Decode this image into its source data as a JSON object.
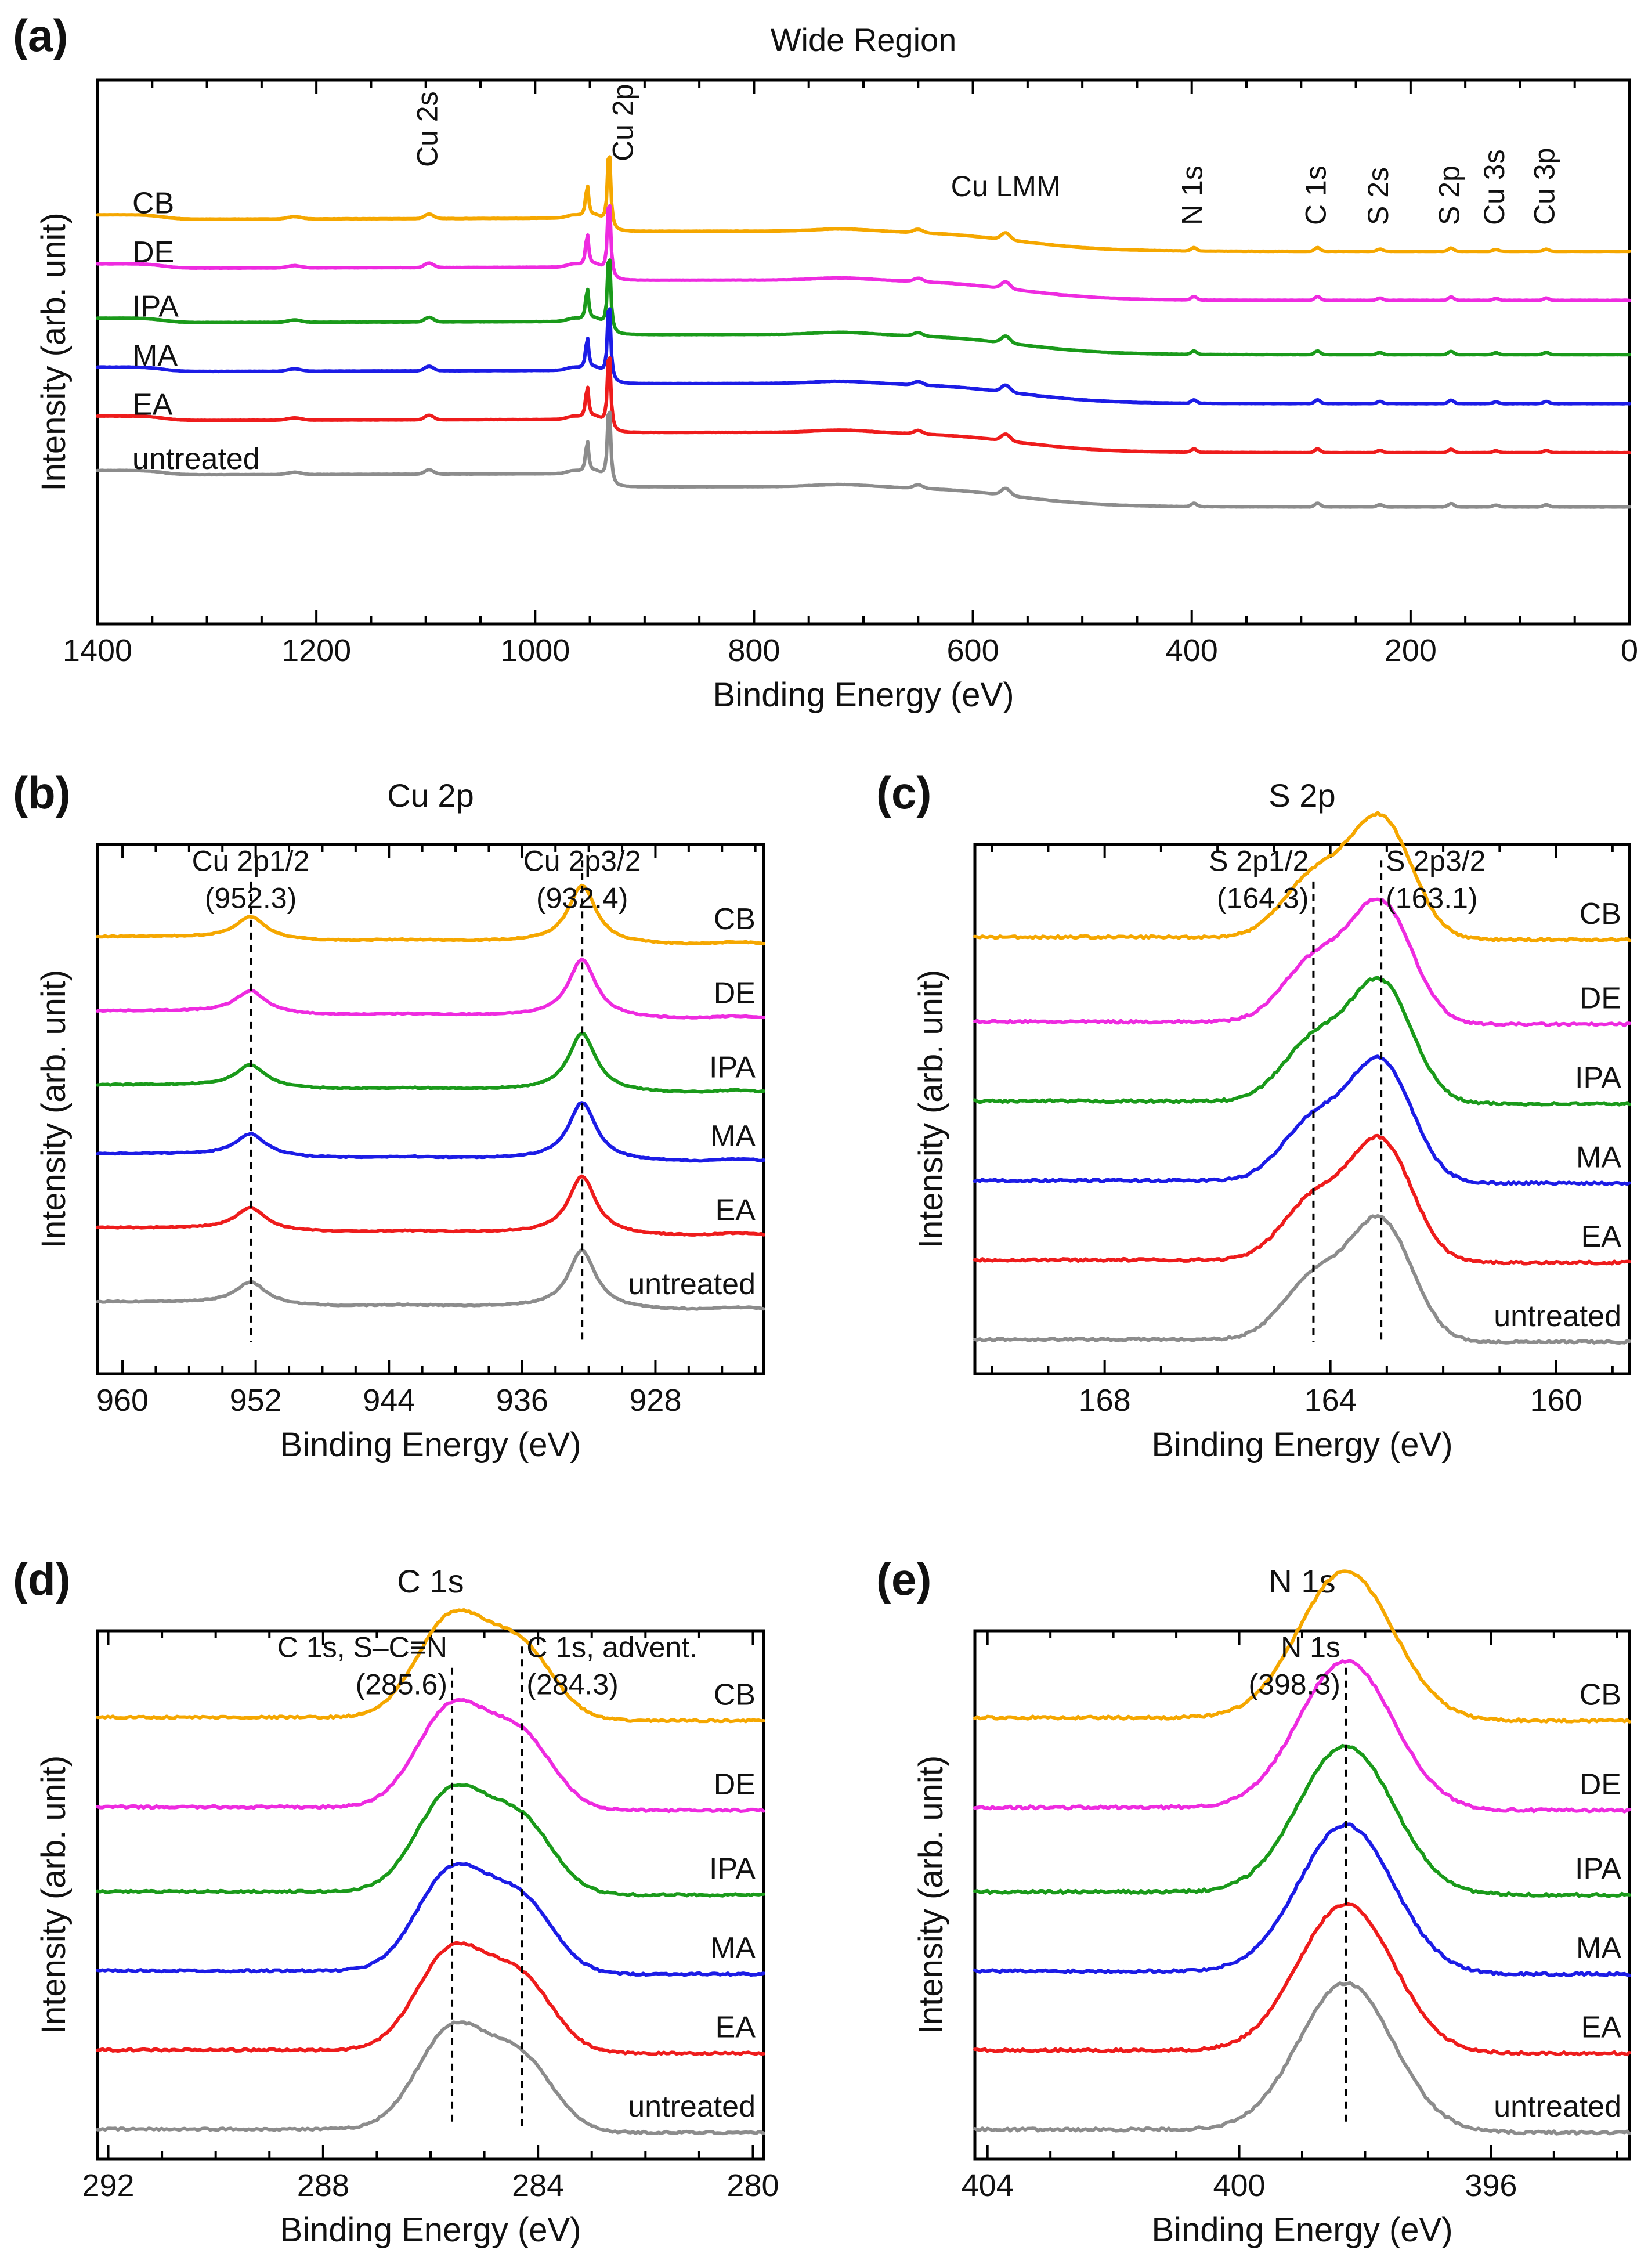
{
  "colors": {
    "CB": "#f5a700",
    "DE": "#ee2be0",
    "IPA": "#1a9a1a",
    "MA": "#1c1ce6",
    "EA": "#ee1c1c",
    "untreated": "#8c8c8c"
  },
  "chart_data": [
    {
      "id": "a",
      "panel_label": "(a)",
      "type": "line",
      "title": "Wide Region",
      "xlabel": "Binding Energy (eV)",
      "ylabel": "Intensity (arb. unit)",
      "xlim": [
        1400,
        0
      ],
      "xticks": [
        1400,
        1200,
        1000,
        800,
        600,
        400,
        200,
        0
      ],
      "series": [
        "CB",
        "DE",
        "IPA",
        "MA",
        "EA",
        "untreated"
      ],
      "peak_labels": [
        "Cu 2s",
        "Cu 2p",
        "Cu LMM",
        "N 1s",
        "C 1s",
        "S 2s",
        "S 2p",
        "Cu 3s",
        "Cu 3p"
      ],
      "peak_positions": [
        1097,
        932,
        570,
        398,
        285,
        228,
        163,
        122,
        76
      ]
    },
    {
      "id": "b",
      "panel_label": "(b)",
      "type": "line",
      "title": "Cu 2p",
      "xlabel": "Binding Energy (eV)",
      "ylabel": "Intensity (arb. unit)",
      "xlim": [
        961.5,
        921.5
      ],
      "xticks": [
        960,
        952,
        944,
        936,
        928
      ],
      "series": [
        "CB",
        "DE",
        "IPA",
        "MA",
        "EA",
        "untreated"
      ],
      "reference_lines": [
        {
          "label": "Cu 2p1/2",
          "value_text": "(952.3)",
          "position": 952.3
        },
        {
          "label": "Cu 2p3/2",
          "value_text": "(932.4)",
          "position": 932.4
        }
      ]
    },
    {
      "id": "c",
      "panel_label": "(c)",
      "type": "line",
      "title": "S 2p",
      "xlabel": "Binding Energy (eV)",
      "ylabel": "Intensity (arb. unit)",
      "xlim": [
        170.3,
        158.7
      ],
      "xticks": [
        168,
        164,
        160
      ],
      "series": [
        "CB",
        "DE",
        "IPA",
        "MA",
        "EA",
        "untreated"
      ],
      "reference_lines": [
        {
          "label": "S 2p1/2",
          "value_text": "(164.3)",
          "position": 164.3
        },
        {
          "label": "S 2p3/2",
          "value_text": "(163.1)",
          "position": 163.1
        }
      ]
    },
    {
      "id": "d",
      "panel_label": "(d)",
      "type": "line",
      "title": "C 1s",
      "xlabel": "Binding Energy (eV)",
      "ylabel": "Intensity (arb. unit)",
      "xlim": [
        292.2,
        279.8
      ],
      "xticks": [
        292,
        288,
        284,
        280
      ],
      "series": [
        "CB",
        "DE",
        "IPA",
        "MA",
        "EA",
        "untreated"
      ],
      "reference_lines": [
        {
          "label": "C 1s, S–C≡N",
          "value_text": "(285.6)",
          "position": 285.6
        },
        {
          "label": "C 1s, advent.",
          "value_text": "(284.3)",
          "position": 284.3
        }
      ]
    },
    {
      "id": "e",
      "panel_label": "(e)",
      "type": "line",
      "title": "N 1s",
      "xlabel": "Binding Energy (eV)",
      "ylabel": "Intensity (arb. unit)",
      "xlim": [
        404.2,
        393.8
      ],
      "xticks": [
        404,
        400,
        396
      ],
      "series": [
        "CB",
        "DE",
        "IPA",
        "MA",
        "EA",
        "untreated"
      ],
      "reference_lines": [
        {
          "label": "N 1s",
          "value_text": "(398.3)",
          "position": 398.3
        }
      ]
    }
  ]
}
